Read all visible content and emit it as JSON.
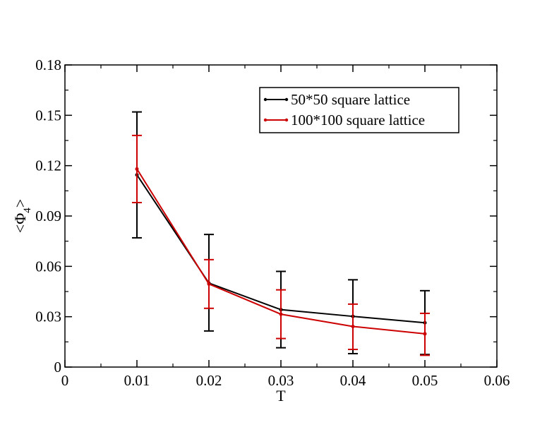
{
  "chart_data": {
    "type": "line",
    "xlabel": "T",
    "ylabel": {
      "prefix": "<Φ",
      "subscript": "4",
      "suffix": ">"
    },
    "xlim": [
      0,
      0.06
    ],
    "ylim": [
      0,
      0.18
    ],
    "xticks": [
      "0",
      "0.01",
      "0.02",
      "0.03",
      "0.04",
      "0.05",
      "0.06"
    ],
    "yticks": [
      "0",
      "0.03",
      "0.06",
      "0.09",
      "0.12",
      "0.15",
      "0.18"
    ],
    "legend_position": "top-right",
    "series": [
      {
        "name": "50*50 square lattice",
        "color": "#000000",
        "x": [
          0.01,
          0.02,
          0.03,
          0.04,
          0.05
        ],
        "y": [
          0.1145,
          0.05,
          0.0342,
          0.0302,
          0.0264
        ],
        "err_low": [
          0.077,
          0.0215,
          0.0115,
          0.008,
          0.0075
        ],
        "err_high": [
          0.152,
          0.079,
          0.057,
          0.052,
          0.0455
        ]
      },
      {
        "name": "100*100 square lattice",
        "color": "#cc0000",
        "x": [
          0.01,
          0.02,
          0.03,
          0.04,
          0.05
        ],
        "y": [
          0.118,
          0.0495,
          0.0315,
          0.0242,
          0.0198
        ],
        "err_low": [
          0.098,
          0.035,
          0.017,
          0.0105,
          0.007
        ],
        "err_high": [
          0.138,
          0.064,
          0.046,
          0.0375,
          0.032
        ]
      }
    ]
  }
}
